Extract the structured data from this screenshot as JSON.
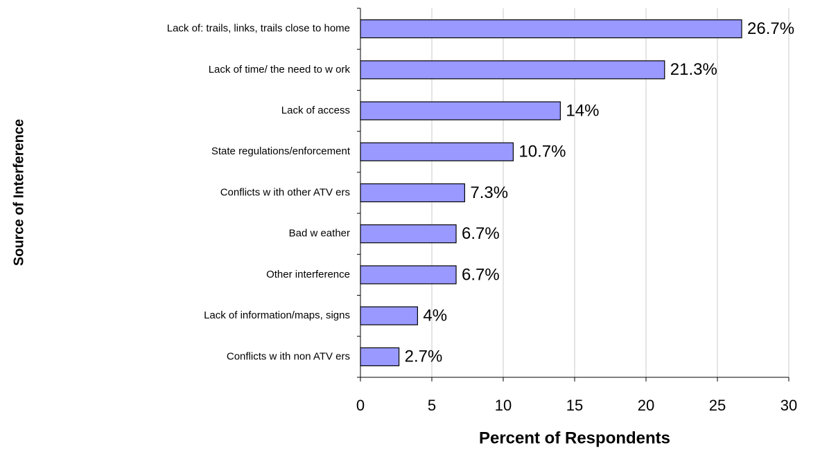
{
  "chart_data": {
    "type": "bar",
    "orientation": "horizontal",
    "xlabel": "Percent of Respondents",
    "ylabel": "Source of Interference",
    "categories": [
      "Lack of: trails, links, trails close to home",
      "Lack of time/ the need to w ork",
      "Lack of access",
      "State regulations/enforcement",
      "Conflicts w ith other ATV ers",
      "Bad w eather",
      "Other interference",
      "Lack of information/maps, signs",
      "Conflicts w ith non ATV ers"
    ],
    "values": [
      26.7,
      21.3,
      14,
      10.7,
      7.3,
      6.7,
      6.7,
      4,
      2.7
    ],
    "value_labels": [
      "26.7%",
      "21.3%",
      "14%",
      "10.7%",
      "7.3%",
      "6.7%",
      "6.7%",
      "4%",
      "2.7%"
    ],
    "color": "#9999ff",
    "xlim": [
      0,
      30
    ],
    "xticks": [
      0,
      5,
      10,
      15,
      20,
      25,
      30
    ],
    "grid": true
  }
}
